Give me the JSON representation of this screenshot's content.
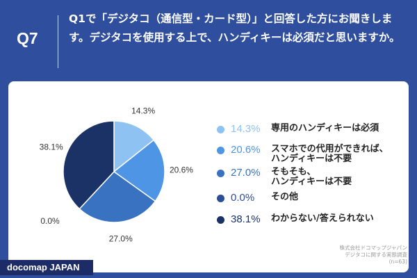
{
  "header": {
    "question_number": "Q7",
    "question_text": "Q1で「デジタコ（通信型・カード型）」と回答した方にお聞きします。デジタコを使用する上で、ハンディキーは必須だと思いますか。"
  },
  "chart_data": {
    "type": "pie",
    "start": "12 o'clock, clockwise",
    "slices": [
      {
        "label": "専用のハンディキーは必須",
        "value": 14.3,
        "display": "14.3%",
        "color": "#8ec2f3"
      },
      {
        "label": "スマホでの代用ができれば、\nハンディキーは不要",
        "value": 20.6,
        "display": "20.6%",
        "color": "#4f95e6"
      },
      {
        "label": "そもそも、\nハンディキーは不要",
        "value": 27.0,
        "display": "27.0%",
        "color": "#3a72c2"
      },
      {
        "label": "その他",
        "value": 0.0,
        "display": "0.0%",
        "color": "#2b4e96"
      },
      {
        "label": "わからない/答えられない",
        "value": 38.1,
        "display": "38.1%",
        "color": "#1b3266"
      }
    ]
  },
  "footer": {
    "credit_line1": "株式会社ドコマップジャパン",
    "credit_line2": "デジタコに関する実態調査",
    "sample_size": "(n=63)",
    "brand": "docomap JAPAN"
  }
}
